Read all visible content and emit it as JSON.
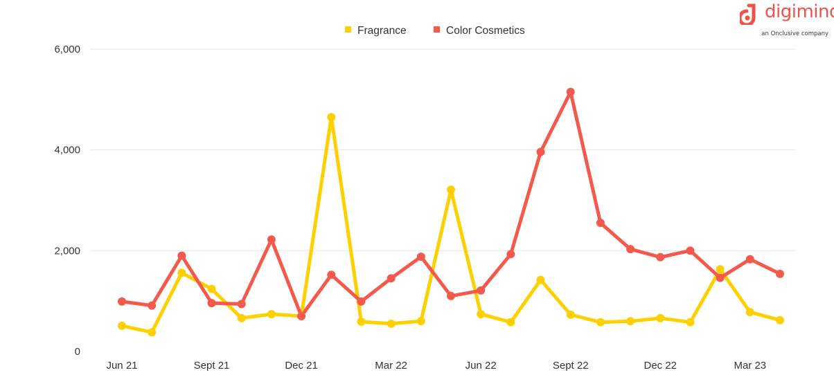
{
  "brand": {
    "name": "digimind",
    "tagline": "an Onclusive company",
    "color": "#f0524a"
  },
  "chart_data": {
    "type": "line",
    "title": "",
    "xlabel": "",
    "ylabel": "",
    "ylim": [
      0,
      6000
    ],
    "yticks": [
      0,
      2000,
      4000,
      6000
    ],
    "ytick_labels": [
      "0",
      "2,000",
      "4,000",
      "6,000"
    ],
    "grid": "horizontal",
    "legend_position": "top-center",
    "x": [
      "Jun 21",
      "Jul 21",
      "Aug 21",
      "Sept 21",
      "Oct 21",
      "Nov 21",
      "Dec 21",
      "Jan 22",
      "Feb 22",
      "Mar 22",
      "Apr 22",
      "May 22",
      "Jun 22",
      "Jul 22",
      "Aug 22",
      "Sept 22",
      "Oct 22",
      "Nov 22",
      "Dec 22",
      "Jan 23",
      "Feb 23",
      "Mar 23",
      "Apr 23"
    ],
    "xtick_labels": [
      "Jun 21",
      "Sept 21",
      "Dec 21",
      "Mar 22",
      "Jun 22",
      "Sept 22",
      "Dec 22",
      "Mar 23"
    ],
    "series": [
      {
        "name": "Fragrance",
        "color": "#ffd000",
        "values": [
          510,
          380,
          1560,
          1240,
          660,
          740,
          700,
          4650,
          590,
          550,
          600,
          3210,
          740,
          580,
          1420,
          730,
          580,
          600,
          660,
          580,
          1630,
          780,
          620
        ]
      },
      {
        "name": "Color Cosmetics",
        "color": "#f45a4c",
        "values": [
          990,
          910,
          1900,
          960,
          940,
          2220,
          700,
          1520,
          990,
          1450,
          1880,
          1100,
          1210,
          1930,
          3960,
          5150,
          2550,
          2030,
          1870,
          2000,
          1460,
          1830,
          1540
        ]
      }
    ]
  }
}
